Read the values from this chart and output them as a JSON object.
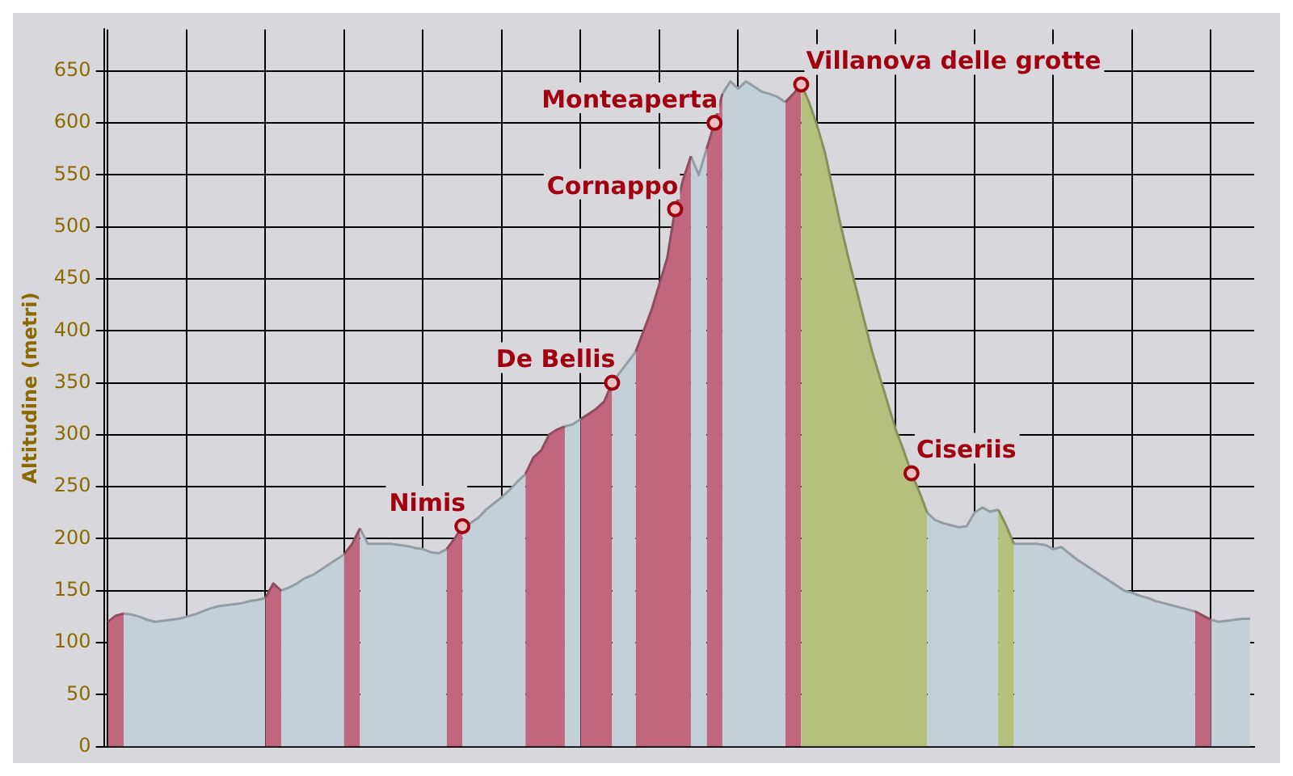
{
  "chart_data": {
    "type": "area",
    "ylabel": "Altitudine (metri)",
    "categories": [
      null,
      null,
      null,
      null,
      null,
      null,
      null,
      null,
      null,
      null,
      null,
      null,
      null,
      null,
      null,
      null,
      null,
      null,
      null,
      null,
      null,
      null,
      null,
      null,
      null,
      null,
      null,
      null,
      null,
      null,
      null,
      null,
      null,
      null,
      null,
      null,
      null,
      null,
      null,
      null,
      null,
      null,
      null,
      null,
      null,
      null,
      null,
      null,
      null,
      null,
      null,
      null,
      null,
      null,
      null,
      null,
      null,
      null,
      null,
      null,
      null,
      null,
      null,
      null,
      null,
      null,
      null,
      null,
      null,
      null,
      null,
      null,
      null,
      null,
      null,
      null,
      null,
      null,
      null,
      null,
      null,
      null,
      null,
      null,
      null,
      null,
      null,
      null,
      null,
      null,
      null,
      null,
      null,
      null,
      null,
      null,
      null,
      null,
      null,
      null,
      null,
      null,
      null,
      null,
      null,
      null,
      null,
      null,
      null,
      null,
      null,
      null,
      null,
      null,
      null,
      null,
      null,
      null,
      null,
      null,
      null,
      null,
      null,
      null,
      null,
      null,
      null,
      null,
      null,
      null,
      null,
      null,
      null,
      null,
      null,
      null,
      null,
      null,
      null,
      null,
      null,
      null,
      null,
      null,
      null,
      null
    ],
    "series": [
      {
        "color": "#c3d0d8",
        "values": [
          null,
          null,
          128,
          127,
          125,
          122,
          120,
          121,
          122,
          123,
          125,
          127,
          130,
          133,
          135,
          136,
          137,
          138,
          140,
          141,
          143,
          null,
          150,
          153,
          157,
          162,
          165,
          170,
          175,
          180,
          185,
          null,
          210,
          195,
          195,
          195,
          195,
          194,
          193,
          191,
          190,
          187,
          186,
          190,
          null,
          212,
          215,
          220,
          228,
          234,
          240,
          247,
          255,
          262,
          null,
          null,
          null,
          null,
          308,
          310,
          315,
          null,
          null,
          null,
          350,
          360,
          370,
          380,
          null,
          null,
          null,
          null,
          null,
          null,
          568,
          550,
          575,
          null,
          628,
          640,
          633,
          640,
          635,
          630,
          628,
          625,
          620,
          null,
          null,
          null,
          null,
          null,
          null,
          null,
          null,
          null,
          null,
          null,
          null,
          null,
          null,
          null,
          null,
          null,
          225,
          218,
          215,
          213,
          211,
          212,
          225,
          230,
          226,
          228,
          null,
          195,
          195,
          195,
          195,
          194,
          190,
          192,
          186,
          180,
          175,
          170,
          165,
          160,
          155,
          150,
          148,
          145,
          143,
          140,
          138,
          136,
          134,
          132,
          130,
          null,
          122,
          120,
          121,
          122,
          123,
          123
        ]
      },
      {
        "color": "#c0667f",
        "values": [
          120,
          126,
          128,
          null,
          null,
          null,
          null,
          null,
          null,
          null,
          null,
          null,
          null,
          null,
          null,
          null,
          null,
          null,
          null,
          null,
          143,
          157,
          150,
          null,
          null,
          null,
          null,
          null,
          null,
          null,
          185,
          195,
          210,
          null,
          null,
          null,
          null,
          null,
          null,
          null,
          null,
          null,
          null,
          190,
          200,
          212,
          null,
          null,
          null,
          null,
          null,
          null,
          null,
          262,
          278,
          285,
          300,
          305,
          308,
          null,
          315,
          320,
          325,
          332,
          350,
          null,
          null,
          380,
          400,
          420,
          445,
          470,
          517,
          545,
          568,
          null,
          575,
          600,
          628,
          null,
          null,
          null,
          null,
          null,
          null,
          null,
          620,
          628,
          637,
          null,
          null,
          null,
          null,
          null,
          null,
          null,
          null,
          null,
          null,
          null,
          null,
          null,
          null,
          null,
          null,
          null,
          null,
          null,
          null,
          null,
          null,
          null,
          null,
          null,
          null,
          null,
          null,
          null,
          null,
          null,
          null,
          null,
          null,
          null,
          null,
          null,
          null,
          null,
          null,
          null,
          null,
          null,
          null,
          null,
          null,
          null,
          null,
          null,
          130,
          126,
          122,
          null,
          null,
          null,
          null,
          null
        ]
      },
      {
        "color": "#b4c07c",
        "values": [
          null,
          null,
          null,
          null,
          null,
          null,
          null,
          null,
          null,
          null,
          null,
          null,
          null,
          null,
          null,
          null,
          null,
          null,
          null,
          null,
          null,
          null,
          null,
          null,
          null,
          null,
          null,
          null,
          null,
          null,
          null,
          null,
          null,
          null,
          null,
          null,
          null,
          null,
          null,
          null,
          null,
          null,
          null,
          null,
          null,
          null,
          null,
          null,
          null,
          null,
          null,
          null,
          null,
          null,
          null,
          null,
          null,
          null,
          null,
          null,
          null,
          null,
          null,
          null,
          null,
          null,
          null,
          null,
          null,
          null,
          null,
          null,
          null,
          null,
          null,
          null,
          null,
          null,
          null,
          null,
          null,
          null,
          null,
          null,
          null,
          null,
          null,
          null,
          637,
          620,
          598,
          572,
          537,
          502,
          470,
          440,
          410,
          380,
          355,
          330,
          305,
          285,
          263,
          245,
          225,
          null,
          null,
          null,
          null,
          null,
          null,
          null,
          null,
          228,
          213,
          195,
          null,
          null,
          null,
          null,
          null,
          null,
          null,
          null,
          null,
          null,
          null,
          null,
          null,
          null,
          null,
          null,
          null,
          null,
          null,
          null,
          null,
          null,
          null,
          null,
          null,
          null,
          null,
          null,
          null,
          null
        ]
      },
      {
        "type": "scatter",
        "color": "#a00010",
        "marker": "circle",
        "values": [
          null,
          null,
          null,
          null,
          null,
          null,
          null,
          null,
          null,
          null,
          null,
          null,
          null,
          null,
          null,
          null,
          null,
          null,
          null,
          null,
          null,
          null,
          null,
          null,
          null,
          null,
          null,
          null,
          null,
          null,
          null,
          null,
          null,
          null,
          null,
          null,
          null,
          null,
          null,
          null,
          null,
          null,
          null,
          null,
          null,
          212,
          null,
          null,
          null,
          null,
          null,
          null,
          null,
          null,
          null,
          null,
          null,
          null,
          null,
          null,
          null,
          null,
          null,
          null,
          350,
          null,
          null,
          null,
          null,
          null,
          null,
          null,
          517,
          null,
          null,
          null,
          null,
          600,
          null,
          null,
          null,
          null,
          null,
          null,
          null,
          null,
          null,
          null,
          637,
          null,
          null,
          null,
          null,
          null,
          null,
          null,
          null,
          null,
          null,
          null,
          null,
          null,
          263,
          null,
          null,
          null,
          null,
          null,
          null,
          null,
          null,
          null,
          null,
          null,
          null,
          null,
          null,
          null,
          null,
          null,
          null,
          null,
          null,
          null,
          null,
          null,
          null,
          null,
          null,
          null,
          null,
          null,
          null,
          null,
          null,
          null,
          null,
          null,
          null,
          null,
          null,
          null,
          null,
          null,
          null,
          null
        ],
        "value_labels": [
          null,
          null,
          null,
          null,
          null,
          null,
          null,
          null,
          null,
          null,
          null,
          null,
          null,
          null,
          null,
          null,
          null,
          null,
          null,
          null,
          null,
          null,
          null,
          null,
          null,
          null,
          null,
          null,
          null,
          null,
          null,
          null,
          null,
          null,
          null,
          null,
          null,
          null,
          null,
          null,
          null,
          null,
          null,
          null,
          null,
          "Nimis",
          null,
          null,
          null,
          null,
          null,
          null,
          null,
          null,
          null,
          null,
          null,
          null,
          null,
          null,
          null,
          null,
          null,
          null,
          "De Bellis",
          null,
          null,
          null,
          null,
          null,
          null,
          null,
          "Cornappo",
          null,
          null,
          null,
          null,
          "Monteaperta",
          null,
          null,
          null,
          null,
          null,
          null,
          null,
          null,
          null,
          null,
          "Villanova delle grotte",
          null,
          null,
          null,
          null,
          null,
          null,
          null,
          null,
          null,
          null,
          null,
          null,
          null,
          "Ciseriis",
          null,
          null,
          null,
          null,
          null,
          null,
          null,
          null,
          null,
          null,
          null,
          null,
          null,
          null,
          null,
          null,
          null,
          null,
          null,
          null,
          null,
          null,
          null,
          null,
          null,
          null,
          null,
          null,
          null,
          null,
          null,
          null,
          null,
          null,
          null,
          null,
          null,
          null,
          null,
          null,
          null,
          null,
          null
        ]
      }
    ],
    "ylim": [
      0,
      690
    ],
    "yticks": [
      0,
      50,
      100,
      150,
      200,
      250,
      300,
      350,
      400,
      450,
      500,
      550,
      600,
      650
    ],
    "grid": true,
    "tick_labels": "y"
  }
}
